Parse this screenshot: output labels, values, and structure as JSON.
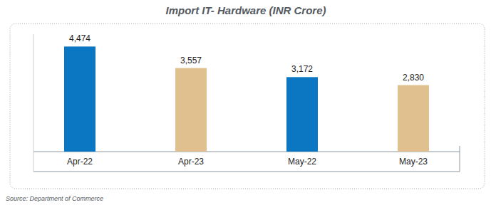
{
  "chart_data": {
    "type": "bar",
    "title": "Import IT- Hardware (INR Crore)",
    "subtitle": "Source: Department of Commerce",
    "categories": [
      "Apr-22",
      "Apr-23",
      "May-22",
      "May-23"
    ],
    "values": [
      4474,
      3557,
      3172,
      2830
    ],
    "value_labels": [
      "4,474",
      "3,557",
      "3,172",
      "2,830"
    ],
    "colors": [
      "#0b77c2",
      "#dfc08e",
      "#0b77c2",
      "#dfc08e"
    ],
    "ylim": [
      0,
      5000
    ],
    "grid": false,
    "data_labels": true,
    "tick_labels": "x"
  }
}
